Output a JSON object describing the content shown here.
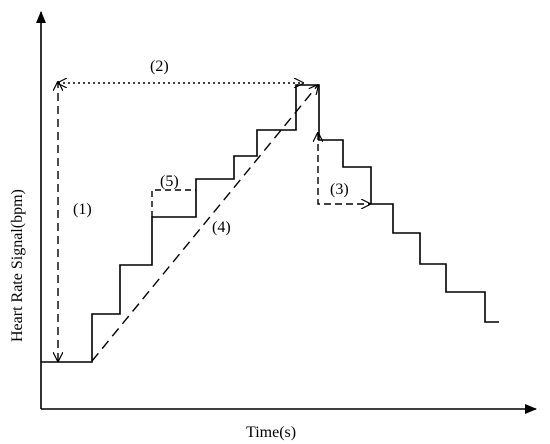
{
  "axes": {
    "x_label": "Time(s)",
    "y_label": "Heart Rate Signal(bpm)"
  },
  "annotations": {
    "a1": "(1)",
    "a2": "(2)",
    "a3": "(3)",
    "a4": "(4)",
    "a5": "(5)"
  },
  "colors": {
    "ink": "#000000",
    "background": "#ffffff"
  }
}
